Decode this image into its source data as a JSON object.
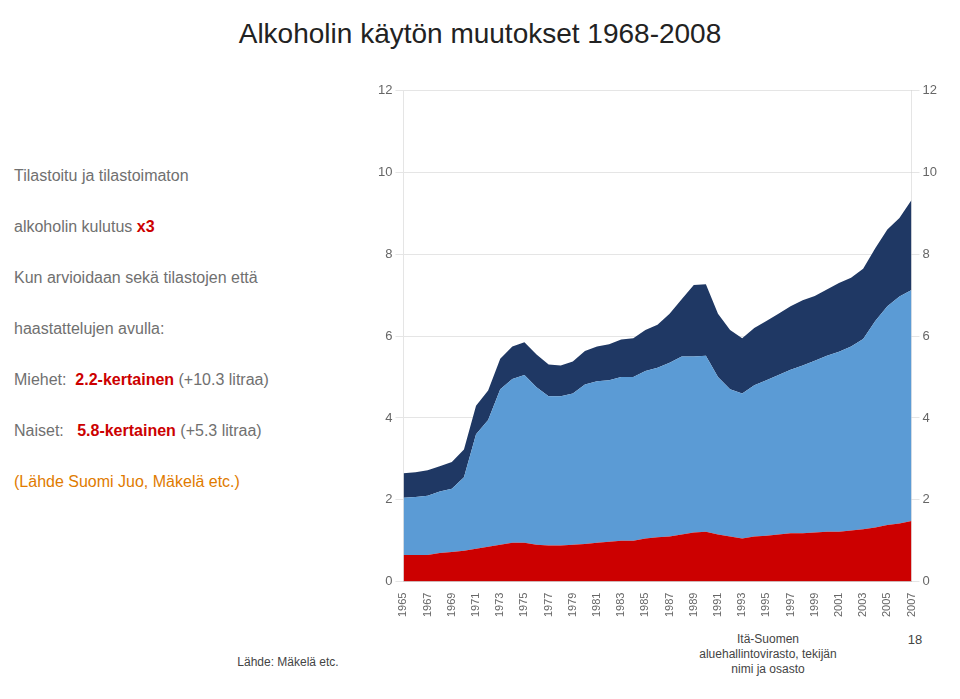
{
  "chart_data": {
    "type": "area",
    "stacked": true,
    "title": "Alkoholin käytön muutokset 1968-2008",
    "x": [
      1965,
      1966,
      1967,
      1968,
      1969,
      1970,
      1971,
      1972,
      1973,
      1974,
      1975,
      1976,
      1977,
      1978,
      1979,
      1980,
      1981,
      1982,
      1983,
      1984,
      1985,
      1986,
      1987,
      1988,
      1989,
      1990,
      1991,
      1992,
      1993,
      1994,
      1995,
      1996,
      1997,
      1998,
      1999,
      2000,
      2001,
      2002,
      2003,
      2004,
      2005,
      2006,
      2007
    ],
    "series": [
      {
        "color": "#cc0000",
        "values": [
          0.65,
          0.65,
          0.65,
          0.7,
          0.72,
          0.75,
          0.8,
          0.85,
          0.9,
          0.95,
          0.95,
          0.9,
          0.88,
          0.88,
          0.9,
          0.92,
          0.95,
          0.97,
          1.0,
          1.0,
          1.05,
          1.08,
          1.1,
          1.15,
          1.2,
          1.22,
          1.15,
          1.1,
          1.05,
          1.1,
          1.12,
          1.15,
          1.18,
          1.18,
          1.2,
          1.22,
          1.22,
          1.25,
          1.28,
          1.32,
          1.38,
          1.42,
          1.48
        ]
      },
      {
        "color": "#5b9bd5",
        "values": [
          1.4,
          1.42,
          1.45,
          1.5,
          1.55,
          1.8,
          2.8,
          3.1,
          3.8,
          4.0,
          4.1,
          3.85,
          3.65,
          3.65,
          3.7,
          3.9,
          3.95,
          3.95,
          4.0,
          4.0,
          4.1,
          4.15,
          4.25,
          4.35,
          4.3,
          4.3,
          3.85,
          3.6,
          3.55,
          3.7,
          3.8,
          3.9,
          4.0,
          4.1,
          4.2,
          4.3,
          4.4,
          4.5,
          4.65,
          5.05,
          5.35,
          5.55,
          5.65
        ]
      },
      {
        "color": "#1f3864",
        "values": [
          0.6,
          0.6,
          0.62,
          0.62,
          0.65,
          0.68,
          0.7,
          0.72,
          0.75,
          0.8,
          0.8,
          0.8,
          0.78,
          0.75,
          0.78,
          0.82,
          0.85,
          0.88,
          0.92,
          0.95,
          1.0,
          1.05,
          1.2,
          1.4,
          1.75,
          1.75,
          1.55,
          1.45,
          1.35,
          1.4,
          1.45,
          1.5,
          1.55,
          1.6,
          1.58,
          1.62,
          1.68,
          1.68,
          1.72,
          1.78,
          1.88,
          1.92,
          2.2
        ]
      }
    ],
    "xlim": [
      1965,
      2007
    ],
    "xticks": [
      1965,
      1967,
      1969,
      1971,
      1973,
      1975,
      1977,
      1979,
      1981,
      1983,
      1985,
      1987,
      1989,
      1991,
      1993,
      1995,
      1997,
      1999,
      2001,
      2003,
      2005,
      2007
    ],
    "ylim": [
      0,
      12
    ],
    "yticks": [
      0,
      2,
      4,
      6,
      8,
      10,
      12
    ],
    "y2lim": [
      0,
      12
    ],
    "y2ticks": [
      0,
      2,
      4,
      6,
      8,
      10,
      12
    ],
    "grid": true,
    "annotations": [
      [
        {
          "text": "Tilastoitu ja tilastoimaton",
          "color": "#707070"
        }
      ],
      [
        {
          "text": "alkoholin kulutus ",
          "color": "#707070"
        },
        {
          "text": "x3",
          "color": "#cc0000"
        }
      ],
      [
        {
          "text": "Kun arvioidaan sekä tilastojen että",
          "color": "#707070"
        }
      ],
      [
        {
          "text": "haastattelujen avulla:",
          "color": "#707070"
        }
      ],
      [
        {
          "text": "Miehet:  ",
          "color": "#707070"
        },
        {
          "text": "2.2-kertainen",
          "color": "#cc0000"
        },
        {
          "text": " (+10.3 litraa)",
          "color": "#707070"
        }
      ],
      [
        {
          "text": "Naiset:   ",
          "color": "#707070"
        },
        {
          "text": "5.8-kertainen",
          "color": "#cc0000"
        },
        {
          "text": " (+5.3 litraa)",
          "color": "#707070"
        }
      ],
      [
        {
          "text": "(Lähde Suomi Juo, Mäkelä etc.)",
          "color": "#e07b00"
        }
      ]
    ],
    "footer": {
      "left": "Lähde: Mäkelä etc.",
      "right": [
        "Itä-Suomen",
        "aluehallintovirasto, tekijän",
        "nimi ja osasto"
      ],
      "page": "18"
    }
  }
}
